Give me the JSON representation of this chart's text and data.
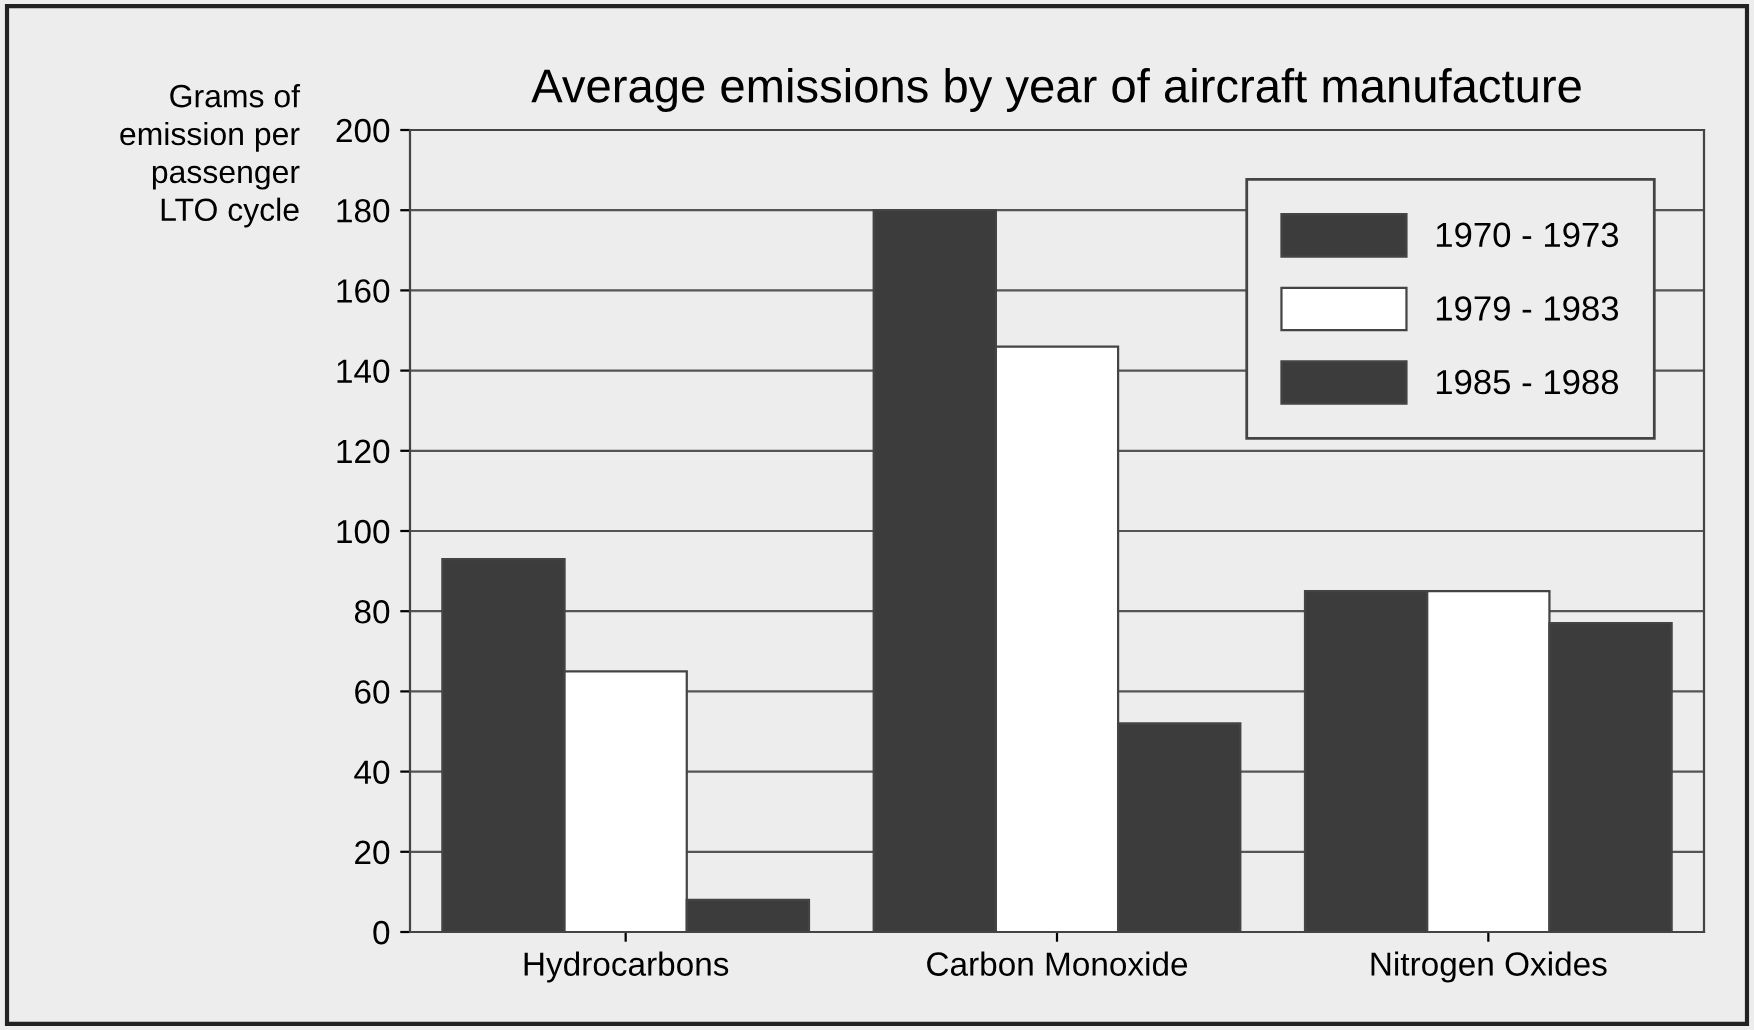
{
  "chart_data": {
    "type": "bar",
    "title": "Average emissions by year of aircraft manufacture",
    "ylabel": "Grams of\nemission per\npassenger\nLTO cycle",
    "categories": [
      "Hydrocarbons",
      "Carbon Monoxide",
      "Nitrogen Oxides"
    ],
    "series": [
      {
        "name": "1970 - 1973",
        "color": "#3c3c3c",
        "values": [
          93,
          180,
          85
        ]
      },
      {
        "name": "1979 - 1983",
        "color": "#ffffff",
        "values": [
          65,
          146,
          85
        ]
      },
      {
        "name": "1985 - 1988",
        "color": "#3c3c3c",
        "values": [
          8,
          52,
          77
        ]
      }
    ],
    "ylim": [
      0,
      200
    ],
    "yticks": [
      0,
      20,
      40,
      60,
      80,
      100,
      120,
      140,
      160,
      180,
      200
    ],
    "grid": "y",
    "legend": "top right"
  }
}
